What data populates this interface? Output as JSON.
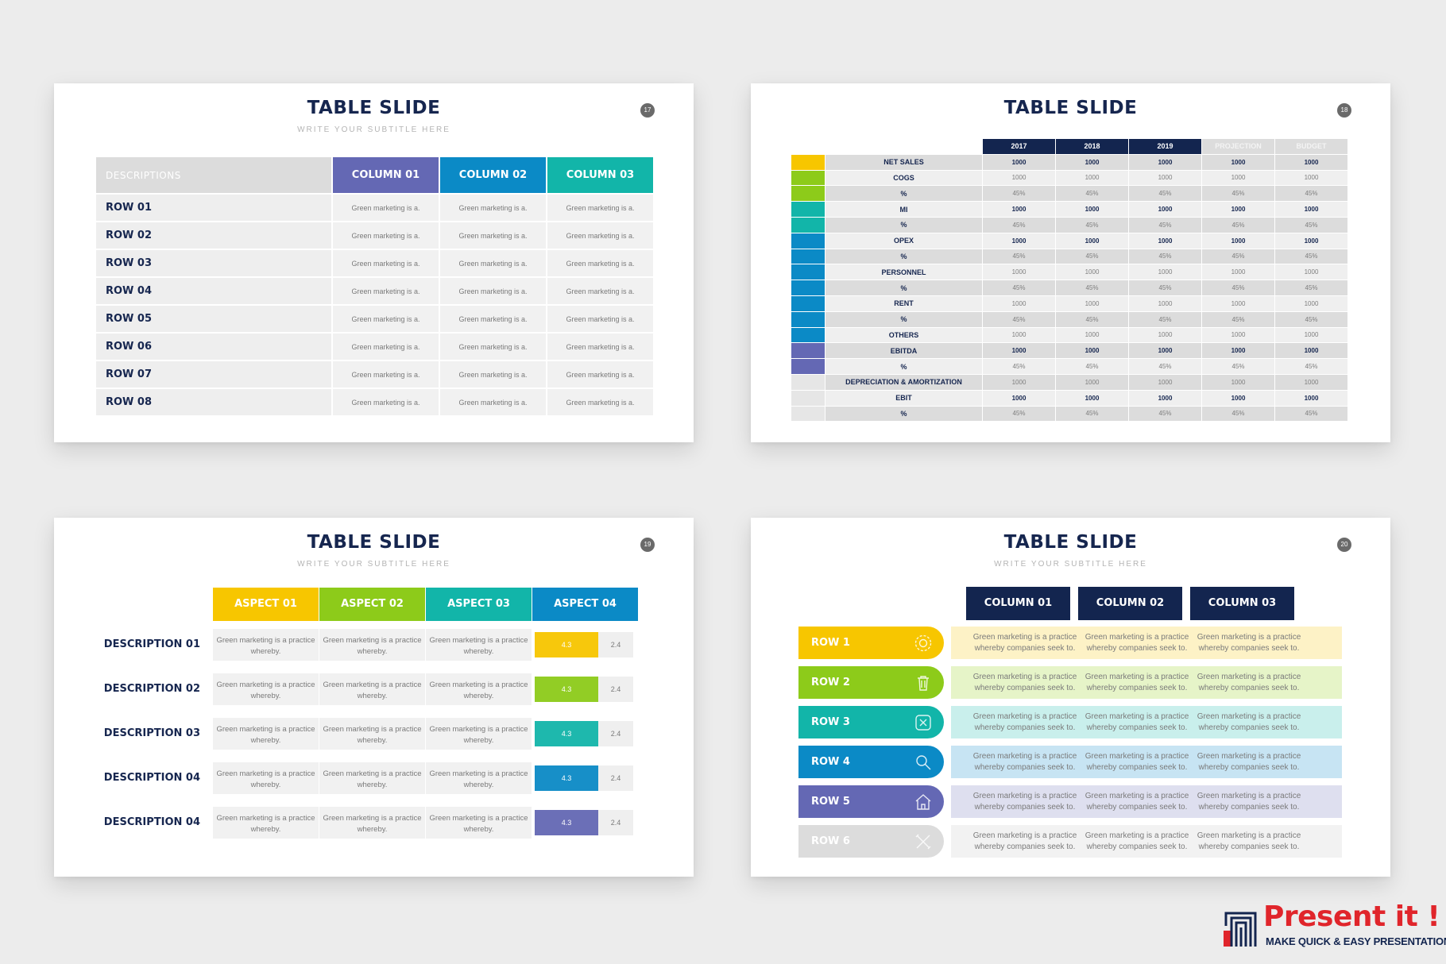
{
  "slide1": {
    "title": "TABLE SLIDE",
    "subtitle": "WRITE YOUR SUBTITLE HERE",
    "page": "17",
    "headers": [
      "DESCRIPTIONS",
      "COLUMN 01",
      "COLUMN 02",
      "COLUMN 03"
    ],
    "header_colors": [
      "#dcdcdc",
      "#6468b4",
      "#0b8ac6",
      "#12b5a9"
    ],
    "rows": [
      {
        "label": "ROW 01",
        "cells": [
          "Green marketing is a.",
          "Green marketing is a.",
          "Green marketing is a."
        ]
      },
      {
        "label": "ROW 02",
        "cells": [
          "Green marketing is a.",
          "Green marketing is a.",
          "Green marketing is a."
        ]
      },
      {
        "label": "ROW 03",
        "cells": [
          "Green marketing is a.",
          "Green marketing is a.",
          "Green marketing is a."
        ]
      },
      {
        "label": "ROW 04",
        "cells": [
          "Green marketing is a.",
          "Green marketing is a.",
          "Green marketing is a."
        ]
      },
      {
        "label": "ROW 05",
        "cells": [
          "Green marketing is a.",
          "Green marketing is a.",
          "Green marketing is a."
        ]
      },
      {
        "label": "ROW 06",
        "cells": [
          "Green marketing is a.",
          "Green marketing is a.",
          "Green marketing is a."
        ]
      },
      {
        "label": "ROW 07",
        "cells": [
          "Green marketing is a.",
          "Green marketing is a.",
          "Green marketing is a."
        ]
      },
      {
        "label": "ROW 08",
        "cells": [
          "Green marketing is a.",
          "Green marketing is a.",
          "Green marketing is a."
        ]
      }
    ]
  },
  "slide2": {
    "title": "TABLE SLIDE",
    "page": "18",
    "headers": [
      "2017",
      "2018",
      "2019",
      "PROJECTION",
      "BUDGET"
    ],
    "header_colors": [
      "#13254f",
      "#13254f",
      "#13254f",
      "#dcdcdc",
      "#dcdcdc"
    ],
    "rows": [
      {
        "label": "NET SALES",
        "swatch": "#f7c600",
        "bold": true,
        "values": [
          "1000",
          "1000",
          "1000",
          "1000",
          "1000"
        ]
      },
      {
        "label": "COGS",
        "swatch": "#8dcb1a",
        "bold": false,
        "values": [
          "1000",
          "1000",
          "1000",
          "1000",
          "1000"
        ]
      },
      {
        "label": "%",
        "swatch": "#8dcb1a",
        "bold": false,
        "values": [
          "45%",
          "45%",
          "45%",
          "45%",
          "45%"
        ]
      },
      {
        "label": "MI",
        "swatch": "#12b5a9",
        "bold": true,
        "values": [
          "1000",
          "1000",
          "1000",
          "1000",
          "1000"
        ]
      },
      {
        "label": "%",
        "swatch": "#12b5a9",
        "bold": false,
        "values": [
          "45%",
          "45%",
          "45%",
          "45%",
          "45%"
        ]
      },
      {
        "label": "OPEX",
        "swatch": "#0b8ac6",
        "bold": true,
        "values": [
          "1000",
          "1000",
          "1000",
          "1000",
          "1000"
        ]
      },
      {
        "label": "%",
        "swatch": "#0b8ac6",
        "bold": false,
        "values": [
          "45%",
          "45%",
          "45%",
          "45%",
          "45%"
        ]
      },
      {
        "label": "PERSONNEL",
        "swatch": "#0b8ac6",
        "bold": false,
        "values": [
          "1000",
          "1000",
          "1000",
          "1000",
          "1000"
        ]
      },
      {
        "label": "%",
        "swatch": "#0b8ac6",
        "bold": false,
        "values": [
          "45%",
          "45%",
          "45%",
          "45%",
          "45%"
        ]
      },
      {
        "label": "RENT",
        "swatch": "#0b8ac6",
        "bold": false,
        "values": [
          "1000",
          "1000",
          "1000",
          "1000",
          "1000"
        ]
      },
      {
        "label": "%",
        "swatch": "#0b8ac6",
        "bold": false,
        "values": [
          "45%",
          "45%",
          "45%",
          "45%",
          "45%"
        ]
      },
      {
        "label": "OTHERS",
        "swatch": "#0b8ac6",
        "bold": false,
        "values": [
          "1000",
          "1000",
          "1000",
          "1000",
          "1000"
        ]
      },
      {
        "label": "EBITDA",
        "swatch": "#6468b4",
        "bold": true,
        "values": [
          "1000",
          "1000",
          "1000",
          "1000",
          "1000"
        ]
      },
      {
        "label": "%",
        "swatch": "#6468b4",
        "bold": false,
        "values": [
          "45%",
          "45%",
          "45%",
          "45%",
          "45%"
        ]
      },
      {
        "label": "DEPRECIATION & AMORTIZATION",
        "swatch": "#e6e6e6",
        "bold": false,
        "values": [
          "1000",
          "1000",
          "1000",
          "1000",
          "1000"
        ]
      },
      {
        "label": "EBIT",
        "swatch": "#e6e6e6",
        "bold": true,
        "values": [
          "1000",
          "1000",
          "1000",
          "1000",
          "1000"
        ]
      },
      {
        "label": "%",
        "swatch": "#e6e6e6",
        "bold": false,
        "values": [
          "45%",
          "45%",
          "45%",
          "45%",
          "45%"
        ]
      }
    ]
  },
  "slide3": {
    "title": "TABLE SLIDE",
    "subtitle": "WRITE YOUR SUBTITLE HERE",
    "page": "19",
    "headers": [
      "ASPECT 01",
      "ASPECT 02",
      "ASPECT 03",
      "ASPECT 04"
    ],
    "header_colors": [
      "#f7c600",
      "#8dcb1a",
      "#12b5a9",
      "#0b8ac6"
    ],
    "rows": [
      {
        "label": "DESCRIPTION 01",
        "cells": [
          "Green marketing is a practice whereby.",
          "Green marketing is a practice whereby.",
          "Green marketing is a practice whereby."
        ],
        "bar_value": "4.3",
        "bar_color": "#f7c600",
        "value": "2.4"
      },
      {
        "label": "DESCRIPTION 02",
        "cells": [
          "Green marketing is a practice whereby.",
          "Green marketing is a practice whereby.",
          "Green marketing is a practice whereby."
        ],
        "bar_value": "4.3",
        "bar_color": "#8dcb1a",
        "value": "2.4"
      },
      {
        "label": "DESCRIPTION 03",
        "cells": [
          "Green marketing is a practice whereby.",
          "Green marketing is a practice whereby.",
          "Green marketing is a practice whereby."
        ],
        "bar_value": "4.3",
        "bar_color": "#12b5a9",
        "value": "2.4"
      },
      {
        "label": "DESCRIPTION 04",
        "cells": [
          "Green marketing is a practice whereby.",
          "Green marketing is a practice whereby.",
          "Green marketing is a practice whereby."
        ],
        "bar_value": "4.3",
        "bar_color": "#0b8ac6",
        "value": "2.4"
      },
      {
        "label": "DESCRIPTION 04",
        "cells": [
          "Green marketing is a practice whereby.",
          "Green marketing is a practice whereby.",
          "Green marketing is a practice whereby."
        ],
        "bar_value": "4.3",
        "bar_color": "#6468b4",
        "value": "2.4"
      }
    ]
  },
  "slide4": {
    "title": "TABLE SLIDE",
    "subtitle": "WRITE YOUR SUBTITLE HERE",
    "page": "20",
    "headers": [
      "COLUMN 01",
      "COLUMN 02",
      "COLUMN 03"
    ],
    "rows": [
      {
        "label": "ROW 1",
        "icon": "gear-icon",
        "color": "#f7c600",
        "band": "#fdf2c6",
        "cells": [
          "Green marketing is a practice whereby companies seek to.",
          "Green marketing is a practice whereby companies seek to.",
          "Green marketing is a practice whereby companies seek to."
        ]
      },
      {
        "label": "ROW 2",
        "icon": "trash-icon",
        "color": "#8dcb1a",
        "band": "#e6f4c8",
        "cells": [
          "Green marketing is a practice whereby companies seek to.",
          "Green marketing is a practice whereby companies seek to.",
          "Green marketing is a practice whereby companies seek to."
        ]
      },
      {
        "label": "ROW 3",
        "icon": "compass-icon",
        "color": "#12b5a9",
        "band": "#c9efec",
        "cells": [
          "Green marketing is a practice whereby companies seek to.",
          "Green marketing is a practice whereby companies seek to.",
          "Green marketing is a practice whereby companies seek to."
        ]
      },
      {
        "label": "ROW 4",
        "icon": "search-icon",
        "color": "#0b8ac6",
        "band": "#c7e4f3",
        "cells": [
          "Green marketing is a practice whereby companies seek to.",
          "Green marketing is a practice whereby companies seek to.",
          "Green marketing is a practice whereby companies seek to."
        ]
      },
      {
        "label": "ROW 5",
        "icon": "house-icon",
        "color": "#6468b4",
        "band": "#dedfef",
        "cells": [
          "Green marketing is a practice whereby companies seek to.",
          "Green marketing is a practice whereby companies seek to.",
          "Green marketing is a practice whereby companies seek to."
        ]
      },
      {
        "label": "ROW 6",
        "icon": "tools-icon",
        "color": "#dcdcdc",
        "band": "#f2f2f2",
        "cells": [
          "Green marketing is a practice whereby companies seek to.",
          "Green marketing is a practice whereby companies seek to.",
          "Green marketing is a practice whereby companies seek to."
        ]
      }
    ]
  },
  "logo": {
    "name": "Present it !",
    "tagline": "MAKE QUICK & EASY PRESENTATIONS"
  }
}
